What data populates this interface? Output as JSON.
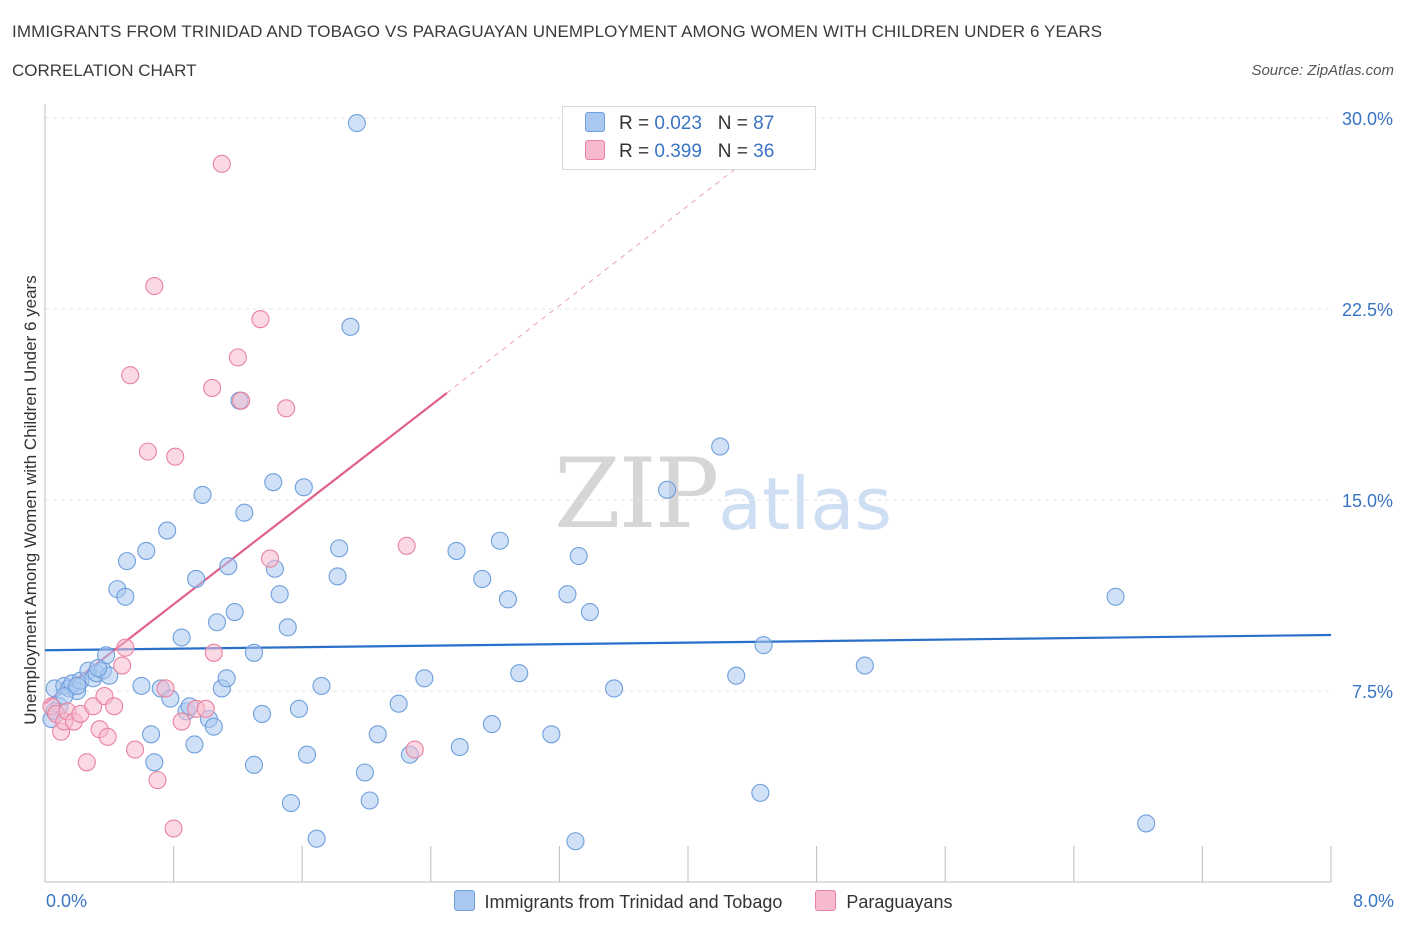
{
  "title": "IMMIGRANTS FROM TRINIDAD AND TOBAGO VS PARAGUAYAN UNEMPLOYMENT AMONG WOMEN WITH CHILDREN UNDER 6 YEARS",
  "subtitle": "CORRELATION CHART",
  "source": "Source: ZipAtlas.com",
  "watermark": {
    "zip": "ZIP",
    "atlas": "atlas"
  },
  "stats": [
    {
      "r_label": "R = ",
      "r_value": "0.023",
      "n_label": "N = ",
      "n_value": "87",
      "color": "#a9c8f0"
    },
    {
      "r_label": "R = ",
      "r_value": "0.399",
      "n_label": "N = ",
      "n_value": "36",
      "color": "#f6b9cd"
    }
  ],
  "chart_data": {
    "type": "scatter",
    "xlabel": "",
    "ylabel": "Unemployment Among Women with Children Under 6 years",
    "xlim": [
      0,
      8
    ],
    "ylim": [
      0,
      30
    ],
    "x_tick_labels": [
      "0.0%",
      "8.0%"
    ],
    "y_ticks": [
      {
        "value": 7.5,
        "label": "7.5%"
      },
      {
        "value": 15,
        "label": "15.0%"
      },
      {
        "value": 22.5,
        "label": "22.5%"
      },
      {
        "value": 30,
        "label": "30.0%"
      }
    ],
    "grid": true,
    "legend_position": "bottom",
    "series": [
      {
        "name": "Immigrants from Trinidad and Tobago",
        "color": "#a9c8f0",
        "stroke": "#6f9fdc",
        "trend": {
          "x": [
            0.0,
            8.0
          ],
          "y": [
            9.1,
            9.7
          ],
          "color": "#2a6fc9"
        },
        "points": [
          [
            0.06,
            7.6
          ],
          [
            0.09,
            6.9
          ],
          [
            0.12,
            7.7
          ],
          [
            0.15,
            7.6
          ],
          [
            0.17,
            7.8
          ],
          [
            0.2,
            7.5
          ],
          [
            0.22,
            7.9
          ],
          [
            0.27,
            8.3
          ],
          [
            0.3,
            8.0
          ],
          [
            0.32,
            8.2
          ],
          [
            0.36,
            8.3
          ],
          [
            0.4,
            8.1
          ],
          [
            0.04,
            6.4
          ],
          [
            0.06,
            6.7
          ],
          [
            0.38,
            8.9
          ],
          [
            0.45,
            11.5
          ],
          [
            0.5,
            11.2
          ],
          [
            0.51,
            12.6
          ],
          [
            0.63,
            13.0
          ],
          [
            0.76,
            13.8
          ],
          [
            0.6,
            7.7
          ],
          [
            0.66,
            5.8
          ],
          [
            0.68,
            4.7
          ],
          [
            0.72,
            7.6
          ],
          [
            0.78,
            7.2
          ],
          [
            0.85,
            9.6
          ],
          [
            0.88,
            6.7
          ],
          [
            0.93,
            5.4
          ],
          [
            0.94,
            11.9
          ],
          [
            0.98,
            15.2
          ],
          [
            1.02,
            6.4
          ],
          [
            1.05,
            6.1
          ],
          [
            1.07,
            10.2
          ],
          [
            1.1,
            7.6
          ],
          [
            1.13,
            8.0
          ],
          [
            1.14,
            12.4
          ],
          [
            1.18,
            10.6
          ],
          [
            1.21,
            18.9
          ],
          [
            1.24,
            14.5
          ],
          [
            1.3,
            4.6
          ],
          [
            1.3,
            9.0
          ],
          [
            1.35,
            6.6
          ],
          [
            1.43,
            12.3
          ],
          [
            1.46,
            11.3
          ],
          [
            1.51,
            10.0
          ],
          [
            1.53,
            3.1
          ],
          [
            1.58,
            6.8
          ],
          [
            1.63,
            5.0
          ],
          [
            1.69,
            1.7
          ],
          [
            1.72,
            7.7
          ],
          [
            1.83,
            13.1
          ],
          [
            1.9,
            21.8
          ],
          [
            1.94,
            29.8
          ],
          [
            1.99,
            4.3
          ],
          [
            2.02,
            3.2
          ],
          [
            2.07,
            5.8
          ],
          [
            2.2,
            7.0
          ],
          [
            2.27,
            5.0
          ],
          [
            2.36,
            8.0
          ],
          [
            2.58,
            5.3
          ],
          [
            2.56,
            13.0
          ],
          [
            2.72,
            11.9
          ],
          [
            2.78,
            6.2
          ],
          [
            2.83,
            13.4
          ],
          [
            2.88,
            11.1
          ],
          [
            2.95,
            8.2
          ],
          [
            3.15,
            5.8
          ],
          [
            3.25,
            11.3
          ],
          [
            3.3,
            1.6
          ],
          [
            3.32,
            12.8
          ],
          [
            3.39,
            10.6
          ],
          [
            3.54,
            7.6
          ],
          [
            3.87,
            15.4
          ],
          [
            4.2,
            17.1
          ],
          [
            4.3,
            8.1
          ],
          [
            4.45,
            3.5
          ],
          [
            4.47,
            9.3
          ],
          [
            5.1,
            8.5
          ],
          [
            6.66,
            11.2
          ],
          [
            6.85,
            2.3
          ],
          [
            0.12,
            7.3
          ],
          [
            0.2,
            7.7
          ],
          [
            0.33,
            8.4
          ],
          [
            0.9,
            6.9
          ],
          [
            1.42,
            15.7
          ],
          [
            1.61,
            15.5
          ],
          [
            1.82,
            12.0
          ]
        ]
      },
      {
        "name": "Paraguayans",
        "color": "#f6b9cd",
        "stroke": "#e9839f",
        "trend": {
          "x": [
            0.0,
            2.5
          ],
          "y": [
            7.0,
            19.2
          ],
          "color": "#e0608b",
          "dash_to": [
            4.6,
            29.5
          ]
        },
        "points": [
          [
            0.04,
            6.9
          ],
          [
            0.07,
            6.6
          ],
          [
            0.1,
            5.9
          ],
          [
            0.12,
            6.3
          ],
          [
            0.14,
            6.7
          ],
          [
            0.18,
            6.3
          ],
          [
            0.22,
            6.6
          ],
          [
            0.26,
            4.7
          ],
          [
            0.3,
            6.9
          ],
          [
            0.34,
            6.0
          ],
          [
            0.37,
            7.3
          ],
          [
            0.39,
            5.7
          ],
          [
            0.43,
            6.9
          ],
          [
            0.48,
            8.5
          ],
          [
            0.5,
            9.2
          ],
          [
            0.53,
            19.9
          ],
          [
            0.56,
            5.2
          ],
          [
            0.64,
            16.9
          ],
          [
            0.68,
            23.4
          ],
          [
            0.7,
            4.0
          ],
          [
            0.75,
            7.6
          ],
          [
            0.8,
            2.1
          ],
          [
            0.81,
            16.7
          ],
          [
            0.85,
            6.3
          ],
          [
            0.94,
            6.8
          ],
          [
            1.0,
            6.8
          ],
          [
            1.04,
            19.4
          ],
          [
            1.05,
            9.0
          ],
          [
            1.1,
            28.2
          ],
          [
            1.2,
            20.6
          ],
          [
            1.22,
            18.9
          ],
          [
            1.34,
            22.1
          ],
          [
            1.4,
            12.7
          ],
          [
            1.5,
            18.6
          ],
          [
            2.25,
            13.2
          ],
          [
            2.3,
            5.2
          ]
        ]
      }
    ]
  }
}
